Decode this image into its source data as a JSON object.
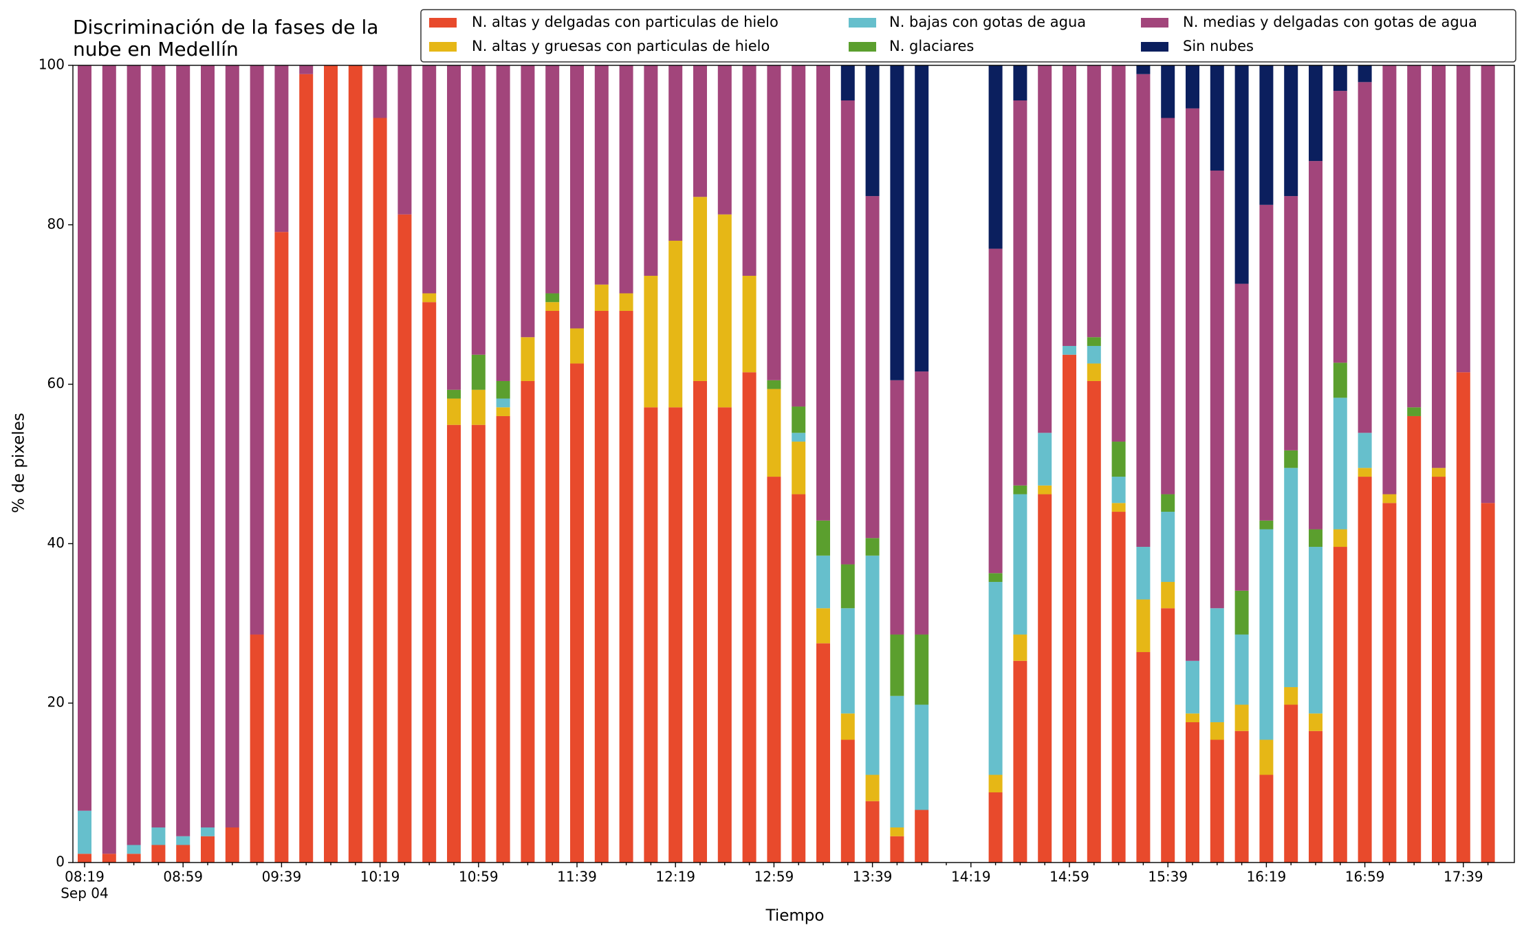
{
  "chart_data": {
    "type": "stacked_bar",
    "title_lines": [
      "Discriminación de la fases de la",
      "nube en Medellín"
    ],
    "xlabel": "Tiempo",
    "ylabel": "% de pixeles",
    "x_date_label": "Sep 04",
    "categories": [
      "08:19",
      null,
      null,
      null,
      "08:59",
      null,
      null,
      null,
      "09:39",
      null,
      null,
      null,
      "10:19",
      null,
      null,
      null,
      "10:59",
      null,
      null,
      null,
      "11:39",
      null,
      null,
      null,
      "12:19",
      null,
      null,
      null,
      "12:59",
      null,
      null,
      null,
      "13:39",
      null,
      null,
      null,
      "14:19",
      null,
      null,
      null,
      "14:59",
      null,
      null,
      null,
      "15:39",
      null,
      null,
      null,
      "16:19",
      null,
      null,
      null,
      "16:59",
      null,
      null,
      null,
      "17:39",
      null
    ],
    "ylim": [
      0,
      100
    ],
    "yticks": [
      0,
      20,
      40,
      60,
      80,
      100
    ],
    "series": [
      {
        "name": "N. altas y delgadas con particulas de hielo",
        "color": "#e84a2c",
        "values": [
          1.1,
          1.1,
          1.1,
          2.2,
          2.2,
          3.3,
          4.4,
          28.6,
          79.1,
          98.9,
          100,
          100,
          93.4,
          81.3,
          70.3,
          54.9,
          54.9,
          56.0,
          60.4,
          69.2,
          62.6,
          69.2,
          69.2,
          57.1,
          57.1,
          60.4,
          57.1,
          61.5,
          48.4,
          46.2,
          27.5,
          15.4,
          7.7,
          3.3,
          6.6,
          null,
          null,
          8.8,
          25.3,
          46.2,
          63.7,
          60.4,
          44.0,
          26.4,
          31.9,
          17.6,
          15.4,
          16.5,
          11.0,
          19.8,
          16.5,
          39.6,
          48.4,
          45.1,
          56.0,
          48.4,
          61.5,
          45.1
        ]
      },
      {
        "name": "N. altas y gruesas con particulas de hielo",
        "color": "#e6b716",
        "values": [
          0,
          0,
          0,
          0,
          0,
          0,
          0,
          0,
          0,
          0,
          0,
          0,
          0,
          0,
          1.1,
          3.3,
          4.4,
          1.1,
          5.5,
          1.1,
          4.4,
          3.3,
          2.2,
          16.5,
          20.9,
          23.1,
          24.2,
          12.1,
          11.0,
          6.6,
          4.4,
          3.3,
          3.3,
          1.1,
          0,
          null,
          null,
          2.2,
          3.3,
          1.1,
          0,
          2.2,
          1.1,
          6.6,
          3.3,
          1.1,
          2.2,
          3.3,
          4.4,
          2.2,
          2.2,
          2.2,
          1.1,
          1.1,
          0,
          1.1,
          0,
          0
        ]
      },
      {
        "name": "N. bajas con gotas de agua",
        "color": "#66bfcc",
        "values": [
          5.4,
          0,
          1.1,
          2.2,
          1.1,
          1.1,
          0,
          0,
          0,
          0,
          0,
          0,
          0,
          0,
          0,
          0,
          0,
          1.1,
          0,
          0,
          0,
          0,
          0,
          0,
          0,
          0,
          0,
          0,
          0,
          1.1,
          6.6,
          13.2,
          27.5,
          16.5,
          13.2,
          null,
          null,
          24.2,
          17.6,
          6.6,
          1.1,
          2.2,
          3.3,
          6.6,
          8.8,
          6.6,
          14.3,
          8.8,
          26.4,
          27.5,
          20.9,
          16.5,
          4.4,
          0,
          0,
          0,
          0,
          0
        ]
      },
      {
        "name": "N. glaciares",
        "color": "#5b9f2e",
        "values": [
          0,
          0,
          0,
          0,
          0,
          0,
          0,
          0,
          0,
          0,
          0,
          0,
          0,
          0,
          0,
          1.1,
          4.4,
          2.2,
          0,
          1.1,
          0,
          0,
          0,
          0,
          0,
          0,
          0,
          0,
          1.1,
          3.3,
          4.4,
          5.5,
          2.2,
          7.7,
          8.8,
          null,
          null,
          1.1,
          1.1,
          0,
          0,
          1.1,
          4.4,
          0,
          2.2,
          0,
          0,
          5.5,
          1.1,
          2.2,
          2.2,
          4.4,
          0,
          0,
          1.1,
          0,
          0,
          0
        ]
      },
      {
        "name": "N. medias y delgadas con gotas de agua",
        "color": "#a2457b",
        "values": [
          93.5,
          98.9,
          97.8,
          95.6,
          96.7,
          95.6,
          95.6,
          71.4,
          20.9,
          1.1,
          0,
          0,
          6.6,
          18.7,
          28.6,
          40.7,
          36.3,
          39.6,
          34.1,
          28.6,
          33.0,
          27.5,
          28.6,
          26.4,
          22.0,
          16.5,
          18.7,
          26.4,
          39.5,
          42.8,
          57.1,
          58.2,
          42.9,
          31.9,
          33.0,
          null,
          null,
          40.7,
          48.3,
          46.1,
          35.2,
          34.1,
          47.2,
          59.3,
          47.2,
          69.3,
          54.9,
          38.5,
          39.6,
          31.9,
          46.2,
          34.1,
          44.0,
          53.8,
          42.9,
          50.5,
          38.5,
          54.9
        ]
      },
      {
        "name": "Sin nubes",
        "color": "#0b1f5e",
        "values": [
          0,
          0,
          0,
          0,
          0,
          0,
          0,
          0,
          0,
          0,
          0,
          0,
          0,
          0,
          0,
          0,
          0,
          0,
          0,
          0,
          0,
          0,
          0,
          0,
          0,
          0,
          0,
          0,
          0,
          0,
          0,
          4.4,
          16.4,
          39.5,
          38.4,
          null,
          null,
          23.0,
          4.4,
          0,
          0,
          0,
          0,
          1.1,
          6.6,
          5.4,
          13.2,
          27.4,
          17.5,
          16.4,
          12.0,
          3.2,
          2.1,
          0,
          0,
          0,
          0,
          0
        ]
      }
    ]
  }
}
